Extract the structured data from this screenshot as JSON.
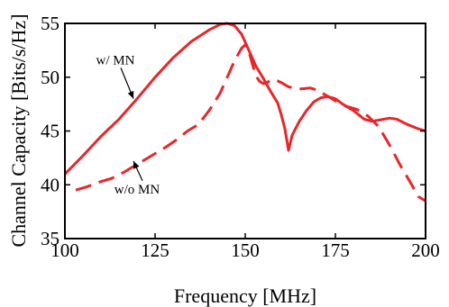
{
  "chart_data": {
    "type": "line",
    "xlabel": "Frequency [MHz]",
    "ylabel": "Channel Capacity [Bits/s/Hz]",
    "xlim": [
      100,
      200
    ],
    "ylim": [
      35,
      55
    ],
    "xticks": [
      100,
      125,
      150,
      175,
      200
    ],
    "yticks": [
      35,
      40,
      45,
      50,
      55
    ],
    "grid": false,
    "legend": "none",
    "series": [
      {
        "name": "w/ MN",
        "color": "#e8262b",
        "style": "solid",
        "x": [
          100,
          105,
          110,
          115,
          120,
          125,
          130,
          135,
          140,
          143,
          145,
          147,
          149,
          151,
          153,
          155,
          157,
          159,
          160,
          161,
          162,
          163,
          165,
          167,
          169,
          171,
          173,
          175,
          177,
          180,
          183,
          185,
          187,
          190,
          192,
          195,
          198,
          200
        ],
        "y": [
          41,
          42.7,
          44.5,
          46.1,
          48,
          50,
          51.8,
          53.3,
          54.4,
          54.9,
          55,
          54.8,
          54,
          52.5,
          51,
          49.9,
          48.7,
          47.6,
          46.5,
          45.2,
          43.2,
          44.6,
          45.9,
          46.9,
          47.7,
          48.1,
          48.2,
          48,
          47.5,
          46.9,
          46.1,
          45.9,
          46,
          46.2,
          46.1,
          45.6,
          45.2,
          45
        ]
      },
      {
        "name": "w/o MN",
        "color": "#e8262b",
        "style": "dashed",
        "x": [
          103,
          106,
          110,
          113,
          116,
          119,
          122,
          125,
          128,
          131,
          134,
          137,
          140,
          143,
          145,
          147,
          149,
          150,
          151,
          152,
          153,
          154,
          155,
          156,
          157,
          158,
          160,
          162,
          165,
          168,
          170,
          172,
          175,
          178,
          181,
          184,
          187,
          190,
          193,
          196,
          198,
          200
        ],
        "y": [
          39.5,
          39.8,
          40.3,
          40.6,
          41.1,
          41.7,
          42.3,
          42.9,
          43.5,
          44.2,
          45,
          45.6,
          46.9,
          48.5,
          50,
          51.5,
          52.7,
          53,
          52.4,
          51.2,
          50.1,
          49.6,
          49.4,
          49.5,
          49.7,
          49.8,
          49.5,
          49.1,
          48.9,
          49,
          48.8,
          48.4,
          47.8,
          47.3,
          47,
          46.4,
          45.4,
          43.7,
          41.8,
          40.1,
          38.9,
          38.5
        ]
      }
    ],
    "annotations": [
      {
        "text": "w/ MN",
        "x": 114,
        "y": 51.2,
        "arrow_to": [
          119,
          48
        ]
      },
      {
        "text": "w/o MN",
        "x": 120,
        "y": 39.2,
        "arrow_to": [
          119,
          42.2
        ]
      }
    ]
  }
}
